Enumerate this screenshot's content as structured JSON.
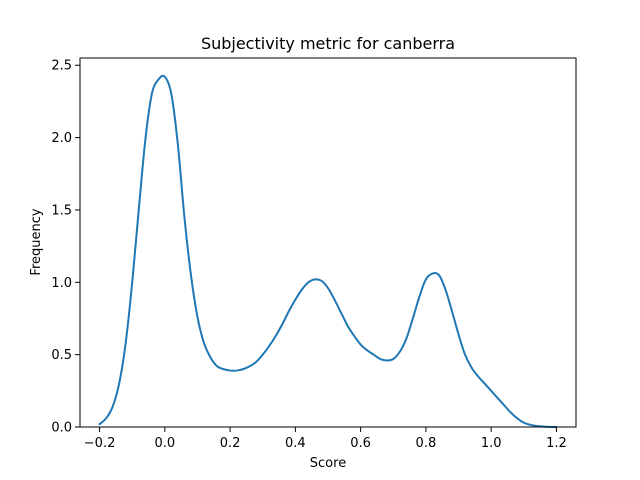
{
  "chart_data": {
    "type": "line",
    "title": "Subjectivity metric for canberra",
    "xlabel": "Score",
    "ylabel": "Frequency",
    "xlim": [
      -0.26,
      1.26
    ],
    "ylim": [
      0.0,
      2.55
    ],
    "xticks": [
      -0.2,
      0.0,
      0.2,
      0.4,
      0.6,
      0.8,
      1.0,
      1.2
    ],
    "xtick_labels": [
      "−0.2",
      "0.0",
      "0.2",
      "0.4",
      "0.6",
      "0.8",
      "1.0",
      "1.2"
    ],
    "yticks": [
      0.0,
      0.5,
      1.0,
      1.5,
      2.0,
      2.5
    ],
    "ytick_labels": [
      "0.0",
      "0.5",
      "1.0",
      "1.5",
      "2.0",
      "2.5"
    ],
    "grid": false,
    "series": [
      {
        "name": "density",
        "color": "#1f77b4",
        "x": [
          -0.2,
          -0.18,
          -0.16,
          -0.14,
          -0.12,
          -0.1,
          -0.08,
          -0.06,
          -0.04,
          -0.02,
          0.0,
          0.02,
          0.04,
          0.06,
          0.08,
          0.1,
          0.12,
          0.14,
          0.16,
          0.18,
          0.2,
          0.22,
          0.24,
          0.26,
          0.28,
          0.3,
          0.32,
          0.34,
          0.36,
          0.38,
          0.4,
          0.42,
          0.44,
          0.46,
          0.48,
          0.5,
          0.52,
          0.54,
          0.56,
          0.58,
          0.6,
          0.62,
          0.64,
          0.66,
          0.68,
          0.7,
          0.72,
          0.74,
          0.76,
          0.78,
          0.8,
          0.82,
          0.84,
          0.86,
          0.88,
          0.9,
          0.92,
          0.94,
          0.96,
          0.98,
          1.0,
          1.02,
          1.04,
          1.06,
          1.08,
          1.1,
          1.12,
          1.14,
          1.16,
          1.18,
          1.2
        ],
        "y": [
          0.02,
          0.06,
          0.14,
          0.3,
          0.58,
          1.0,
          1.5,
          1.98,
          2.3,
          2.4,
          2.42,
          2.3,
          1.95,
          1.45,
          1.05,
          0.76,
          0.58,
          0.48,
          0.42,
          0.4,
          0.39,
          0.39,
          0.4,
          0.42,
          0.45,
          0.5,
          0.56,
          0.63,
          0.71,
          0.8,
          0.88,
          0.95,
          1.0,
          1.02,
          1.01,
          0.96,
          0.88,
          0.79,
          0.7,
          0.63,
          0.57,
          0.53,
          0.5,
          0.47,
          0.46,
          0.47,
          0.52,
          0.61,
          0.75,
          0.9,
          1.02,
          1.06,
          1.05,
          0.95,
          0.8,
          0.64,
          0.5,
          0.41,
          0.35,
          0.3,
          0.25,
          0.2,
          0.15,
          0.1,
          0.06,
          0.03,
          0.015,
          0.007,
          0.003,
          0.001,
          0.0
        ]
      }
    ]
  }
}
